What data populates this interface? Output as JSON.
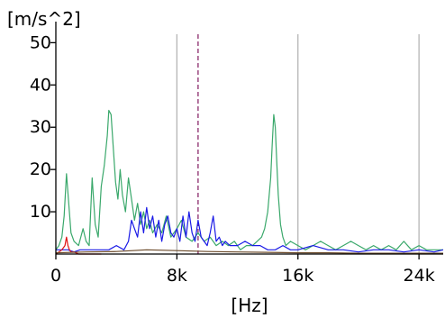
{
  "chart_data": {
    "type": "line",
    "ylabel": "[m/s^2]",
    "xlabel": "[Hz]",
    "xlim": [
      0,
      25600
    ],
    "ylim": [
      0,
      52
    ],
    "x_ticks": [
      0,
      8000,
      16000,
      24000
    ],
    "x_tick_labels": [
      "0",
      "8k",
      "16k",
      "24k"
    ],
    "y_ticks": [
      10,
      20,
      30,
      40,
      50
    ],
    "y_tick_labels": [
      "10",
      "20",
      "30",
      "40",
      "50"
    ],
    "vertical_gridlines_x": [
      8000,
      16000,
      24000
    ],
    "marker_line": {
      "x": 9400,
      "style": "dashed",
      "color": "#8b2a6b"
    },
    "grid": "vertical",
    "series": [
      {
        "color": "#3aa86b",
        "x": [
          0,
          200,
          400,
          550,
          700,
          850,
          1000,
          1200,
          1500,
          1800,
          2000,
          2200,
          2400,
          2600,
          2800,
          3000,
          3200,
          3400,
          3500,
          3650,
          3800,
          3950,
          4100,
          4250,
          4400,
          4600,
          4800,
          5000,
          5200,
          5400,
          5600,
          5800,
          6000,
          6200,
          6400,
          6700,
          7000,
          7300,
          7600,
          8000,
          8300,
          8600,
          9000,
          9400,
          9800,
          10200,
          10600,
          11000,
          11400,
          11800,
          12200,
          12600,
          13000,
          13300,
          13600,
          13800,
          14000,
          14200,
          14300,
          14400,
          14500,
          14600,
          14700,
          14850,
          15000,
          15200,
          15500,
          16000,
          16500,
          17000,
          17500,
          18000,
          18500,
          19000,
          19500,
          20000,
          20500,
          21000,
          21500,
          22000,
          22500,
          23000,
          23500,
          24000,
          24500,
          25000,
          25600
        ],
        "values": [
          1,
          2,
          4,
          9,
          19,
          12,
          5,
          3,
          2,
          6,
          3,
          2,
          18,
          7,
          4,
          16,
          21,
          28,
          34,
          33,
          25,
          17,
          13,
          20,
          14,
          10,
          18,
          13,
          8,
          12,
          7,
          10,
          6,
          8,
          5,
          7,
          5,
          9,
          4,
          6,
          8,
          4,
          3,
          5,
          3,
          4,
          2,
          3,
          2,
          3,
          1,
          2,
          2,
          3,
          4,
          6,
          10,
          18,
          26,
          33,
          30,
          22,
          14,
          7,
          4,
          2,
          3,
          2,
          1,
          2,
          3,
          2,
          1,
          2,
          3,
          2,
          1,
          2,
          1,
          2,
          1,
          3,
          1,
          2,
          1,
          1,
          1
        ]
      },
      {
        "color": "#1a1ae6",
        "x": [
          0,
          400,
          800,
          1200,
          1600,
          2000,
          2500,
          3000,
          3500,
          4000,
          4500,
          4800,
          5000,
          5200,
          5400,
          5600,
          5800,
          6000,
          6200,
          6400,
          6600,
          6800,
          7000,
          7200,
          7400,
          7600,
          7800,
          8000,
          8200,
          8400,
          8600,
          8800,
          9000,
          9200,
          9400,
          9600,
          9800,
          10000,
          10200,
          10400,
          10600,
          10800,
          11000,
          11200,
          11500,
          12000,
          12500,
          13000,
          13500,
          14000,
          14500,
          15000,
          15500,
          16000,
          17000,
          18000,
          19000,
          20000,
          21000,
          22000,
          23000,
          24000,
          25000,
          25600
        ],
        "values": [
          1,
          1,
          1,
          0.5,
          1,
          1,
          1,
          1,
          1,
          2,
          1,
          3,
          8,
          6,
          4,
          10,
          5,
          11,
          6,
          9,
          4,
          8,
          3,
          7,
          9,
          5,
          4,
          6,
          3,
          9,
          4,
          10,
          5,
          3,
          8,
          4,
          3,
          2,
          5,
          9,
          3,
          4,
          2,
          3,
          2,
          2,
          3,
          2,
          2,
          1,
          1,
          2,
          1,
          1,
          2,
          1,
          1,
          0.5,
          1,
          1,
          0.5,
          1,
          0.5,
          1
        ]
      },
      {
        "color": "#e01010",
        "x": [
          0,
          200,
          400,
          600,
          700,
          800,
          900,
          1000,
          1200,
          1500,
          2000,
          2500,
          3000
        ],
        "values": [
          0,
          0.5,
          1,
          2,
          4,
          2,
          1,
          0.5,
          0.5,
          0,
          0,
          0,
          0
        ]
      },
      {
        "color": "#6b4a2a",
        "x": [
          0,
          2000,
          4000,
          6000,
          8000,
          10000,
          12000,
          14000,
          16000,
          18000,
          20000,
          22000,
          24000,
          25600
        ],
        "values": [
          0.3,
          0.5,
          0.6,
          1,
          0.8,
          0.6,
          0.5,
          0.4,
          0.3,
          0.3,
          0.2,
          0.2,
          0.2,
          0.2
        ]
      }
    ]
  }
}
